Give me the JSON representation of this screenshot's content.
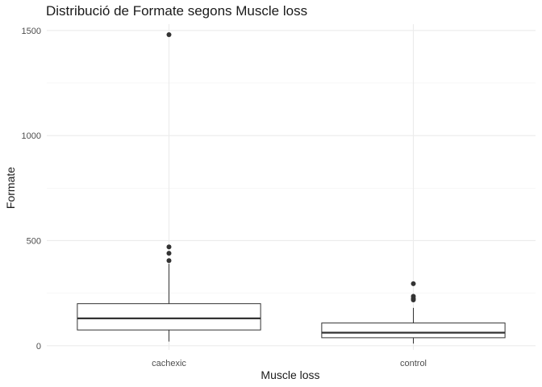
{
  "chart_data": {
    "type": "box",
    "title": "Distribució de Formate segons Muscle loss",
    "xlabel": "Muscle loss",
    "ylabel": "Formate",
    "categories": [
      "cachexic",
      "control"
    ],
    "ylim": [
      -20,
      1530
    ],
    "yticks": [
      0,
      500,
      1000,
      1500
    ],
    "grid": true,
    "boxes": [
      {
        "category": "cachexic",
        "lower_whisker": 20,
        "q1": 75,
        "median": 130,
        "q3": 200,
        "upper_whisker": 390,
        "outliers": [
          405,
          440,
          470,
          1480
        ]
      },
      {
        "category": "control",
        "lower_whisker": 10,
        "q1": 38,
        "median": 62,
        "q3": 108,
        "upper_whisker": 180,
        "outliers": [
          218,
          225,
          235,
          295
        ]
      }
    ]
  }
}
